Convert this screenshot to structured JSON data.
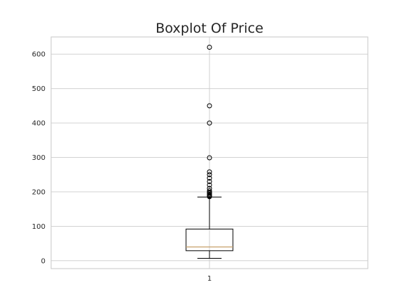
{
  "chart_data": {
    "type": "boxplot",
    "title": "Boxplot Of Price",
    "xlabel": "",
    "ylabel": "",
    "categories": [
      "1"
    ],
    "ylim": [
      -23,
      650
    ],
    "yticks": [
      0,
      100,
      200,
      300,
      400,
      500,
      600
    ],
    "grid": true,
    "box": {
      "whisker_low": 7,
      "q1": 29,
      "median": 40,
      "q3": 92,
      "whisker_high": 185
    },
    "fliers": [
      186,
      188,
      190,
      193,
      196,
      199,
      203,
      210,
      220,
      230,
      240,
      250,
      258,
      299,
      400,
      450,
      620
    ],
    "colors": {
      "median": "#c8a06a",
      "grid": "#cccccc",
      "box": "#000000"
    }
  }
}
